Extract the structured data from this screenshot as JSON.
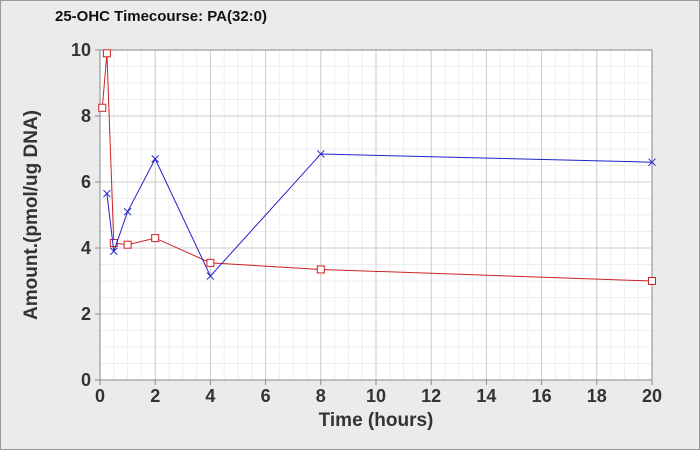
{
  "chart_data": {
    "type": "line",
    "title": "25-OHC Timecourse: PA(32:0)",
    "xlabel": "Time (hours)",
    "ylabel": "Amount.(pmol/ug DNA)",
    "xlim": [
      0,
      20
    ],
    "ylim": [
      0,
      10
    ],
    "x_ticks": [
      "0",
      "2",
      "4",
      "6",
      "8",
      "10",
      "12",
      "14",
      "16",
      "18",
      "20"
    ],
    "y_ticks": [
      "0",
      "2",
      "4",
      "6",
      "8",
      "10"
    ],
    "grid": true,
    "legend": "none",
    "series": [
      {
        "color": "#cc2222",
        "marker": "square",
        "x": [
          0.083,
          0.25,
          0.5,
          1,
          2,
          4,
          8,
          20
        ],
        "values": [
          8.25,
          9.9,
          4.15,
          4.1,
          4.3,
          3.55,
          3.35,
          3.0
        ]
      },
      {
        "color": "#2222cc",
        "marker": "x",
        "x": [
          0.25,
          0.5,
          1,
          2,
          4,
          8,
          20
        ],
        "values": [
          5.65,
          3.9,
          5.1,
          6.7,
          3.15,
          6.85,
          6.6
        ]
      }
    ]
  }
}
